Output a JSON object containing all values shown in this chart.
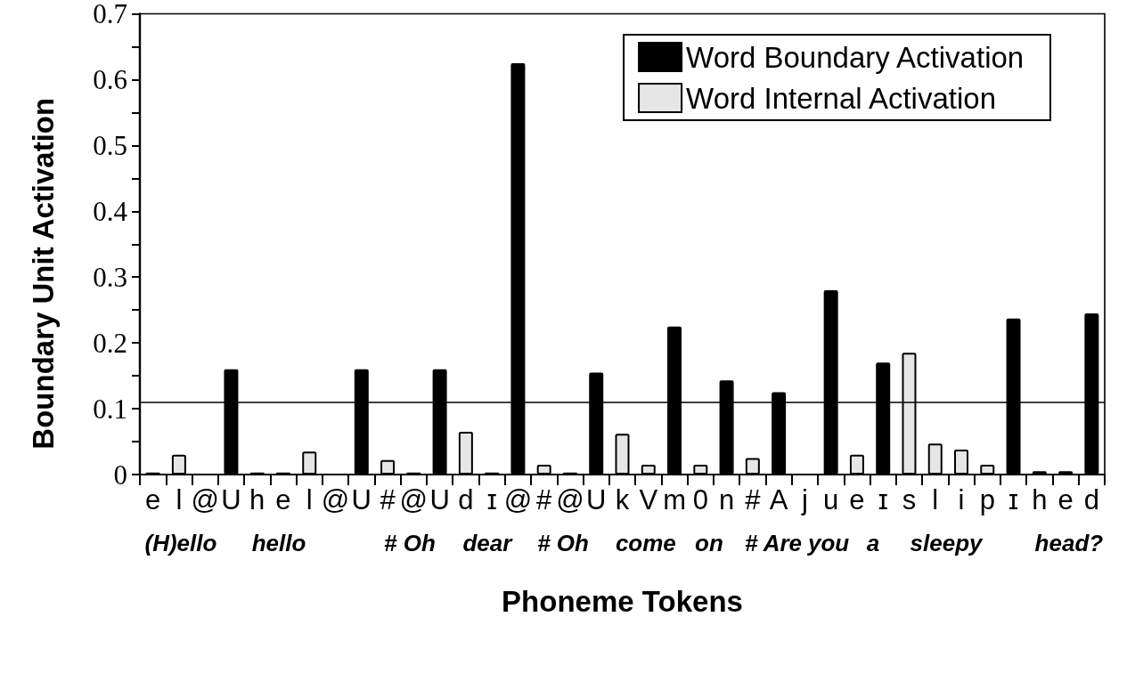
{
  "chart_data": {
    "type": "bar",
    "xlabel": "Phoneme Tokens",
    "ylabel": "Boundary Unit Activation",
    "categories": [
      "e",
      "l",
      "@",
      "U",
      "h",
      "e",
      "l",
      "@",
      "U",
      "#",
      "@",
      "U",
      "d",
      "ɪ",
      "@",
      "#",
      "@",
      "U",
      "k",
      "V",
      "m",
      "0",
      "n",
      "#",
      "A",
      "j",
      "u",
      "e",
      "ɪ",
      "s",
      "l",
      "i",
      "p",
      "ɪ",
      "h",
      "e",
      "d"
    ],
    "series": [
      {
        "name": "Word Boundary Activation",
        "color": "#000000",
        "values": [
          null,
          null,
          null,
          0.16,
          null,
          null,
          null,
          null,
          0.16,
          null,
          null,
          0.16,
          null,
          null,
          0.625,
          null,
          null,
          0.155,
          null,
          null,
          0.225,
          null,
          0.143,
          null,
          0.125,
          null,
          0.28,
          null,
          0.17,
          null,
          null,
          null,
          null,
          0.237,
          null,
          null,
          0.245
        ]
      },
      {
        "name": "Word Internal Activation",
        "color": "#e6e6e6",
        "values": [
          0.003,
          0.03,
          null,
          null,
          0.003,
          0.003,
          0.035,
          null,
          null,
          0.022,
          0.003,
          null,
          0.065,
          0.003,
          null,
          0.015,
          0.003,
          null,
          0.062,
          0.015,
          null,
          0.015,
          null,
          0.025,
          null,
          null,
          null,
          0.03,
          null,
          0.185,
          0.047,
          0.038,
          0.015,
          null,
          0.005,
          0.005,
          null
        ]
      }
    ],
    "ylim": [
      0,
      0.7
    ],
    "yticks": [
      0,
      {
        "value": 0.05,
        "label": null
      },
      0.1,
      {
        "value": 0.15,
        "label": null
      },
      0.2,
      {
        "value": 0.25,
        "label": null
      },
      0.3,
      {
        "value": 0.35,
        "label": null
      },
      0.4,
      {
        "value": 0.45,
        "label": null
      },
      0.5,
      {
        "value": 0.55,
        "label": null
      },
      0.6,
      {
        "value": 0.65,
        "label": null
      },
      0.7
    ],
    "ref_lines": [
      {
        "axis": "y",
        "value": 0.11,
        "color": "#000000",
        "line_style": "solid"
      }
    ],
    "annotations": [
      "(H)ello",
      "hello",
      "# Oh",
      "dear",
      "# Oh",
      "come",
      "on",
      "# Are",
      "you",
      "a",
      "sleepy",
      "head?"
    ],
    "legend": "top right",
    "grid": false
  }
}
